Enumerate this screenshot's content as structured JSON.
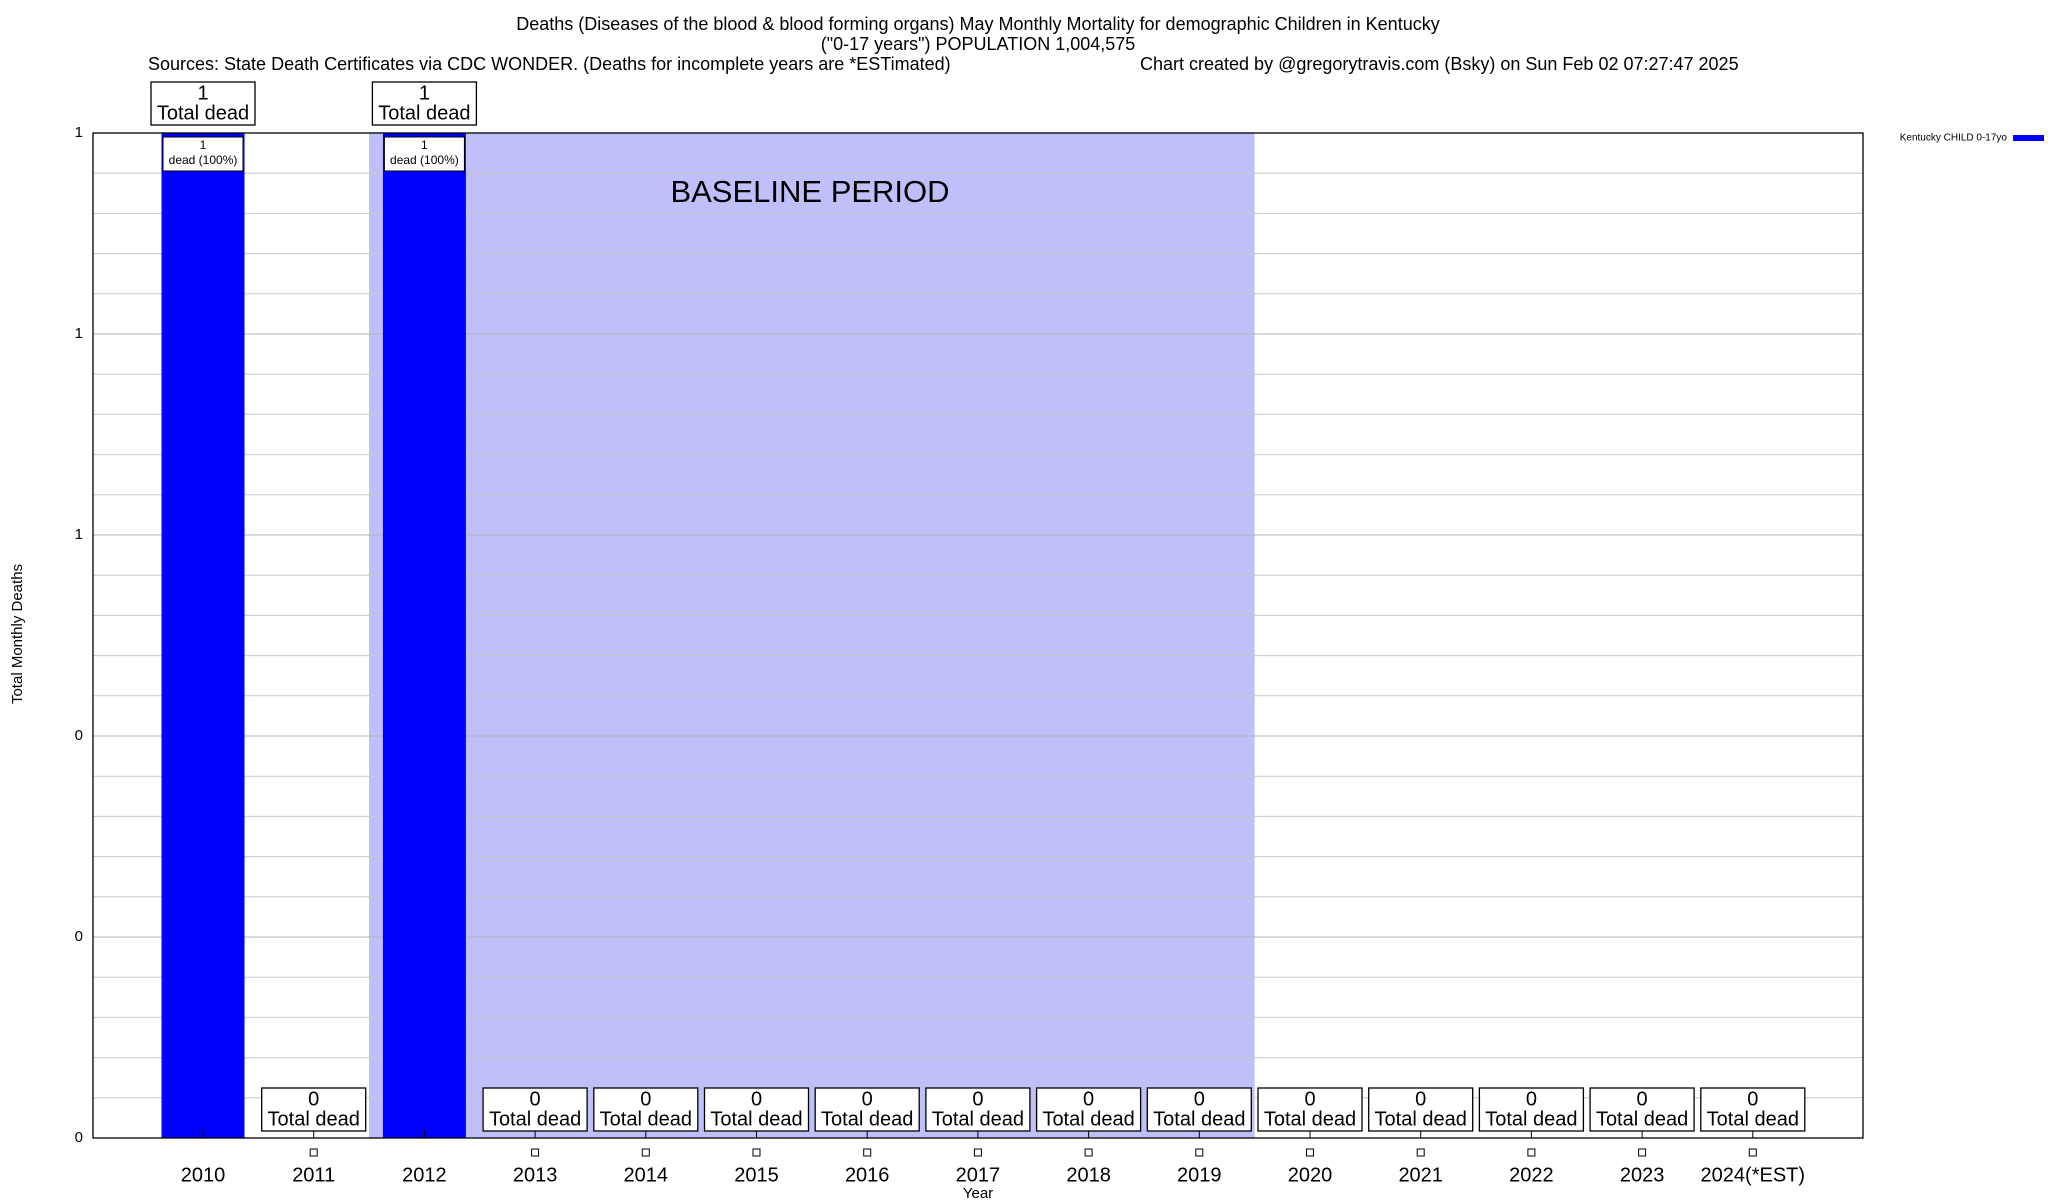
{
  "chart_data": {
    "type": "bar",
    "title": "Deaths (Diseases of the blood & blood forming organs) May Monthly Mortality for demographic Children in Kentucky",
    "subtitle": "(\"0-17 years\") POPULATION 1,004,575",
    "source": "Sources: State Death Certificates via CDC WONDER. (Deaths for incomplete years are *ESTimated)",
    "credit": "Chart created by @gregorytravis.com (Bsky) on Sun Feb 02 07:27:47 2025",
    "xlabel": "Year",
    "ylabel": "Total Monthly Deaths",
    "categories": [
      "2010",
      "2011",
      "2012",
      "2013",
      "2014",
      "2015",
      "2016",
      "2017",
      "2018",
      "2019",
      "2020",
      "2021",
      "2022",
      "2023",
      "2024(*EST)"
    ],
    "series": [
      {
        "name": "Kentucky CHILD 0-17yo",
        "color": "#0000ff",
        "values": [
          1,
          0,
          1,
          0,
          0,
          0,
          0,
          0,
          0,
          0,
          0,
          0,
          0,
          0,
          0
        ],
        "share_labels": [
          "dead (100%)",
          null,
          "dead (100%)",
          null,
          null,
          null,
          null,
          null,
          null,
          null,
          null,
          null,
          null,
          null,
          null
        ]
      }
    ],
    "total_label": "Total dead",
    "ylim": [
      0,
      1
    ],
    "yticks": [
      0,
      {
        "value": 0.2,
        "label": "0"
      },
      {
        "value": 0.4,
        "label": "0"
      },
      {
        "value": 0.6,
        "label": "1"
      },
      {
        "value": 0.8,
        "label": "1"
      },
      1
    ],
    "minor_yticks": [
      0.04,
      0.08,
      0.12,
      0.16,
      0.24,
      0.28,
      0.32,
      0.36,
      0.44,
      0.48,
      0.52,
      0.56,
      0.64,
      0.68,
      0.72,
      0.76,
      0.84,
      0.88,
      0.92,
      0.96
    ],
    "grid": true,
    "baseline": {
      "label": "BASELINE PERIOD",
      "start": "2012",
      "end": "2019",
      "color": "#bfbffa"
    },
    "legend": "upper right"
  }
}
